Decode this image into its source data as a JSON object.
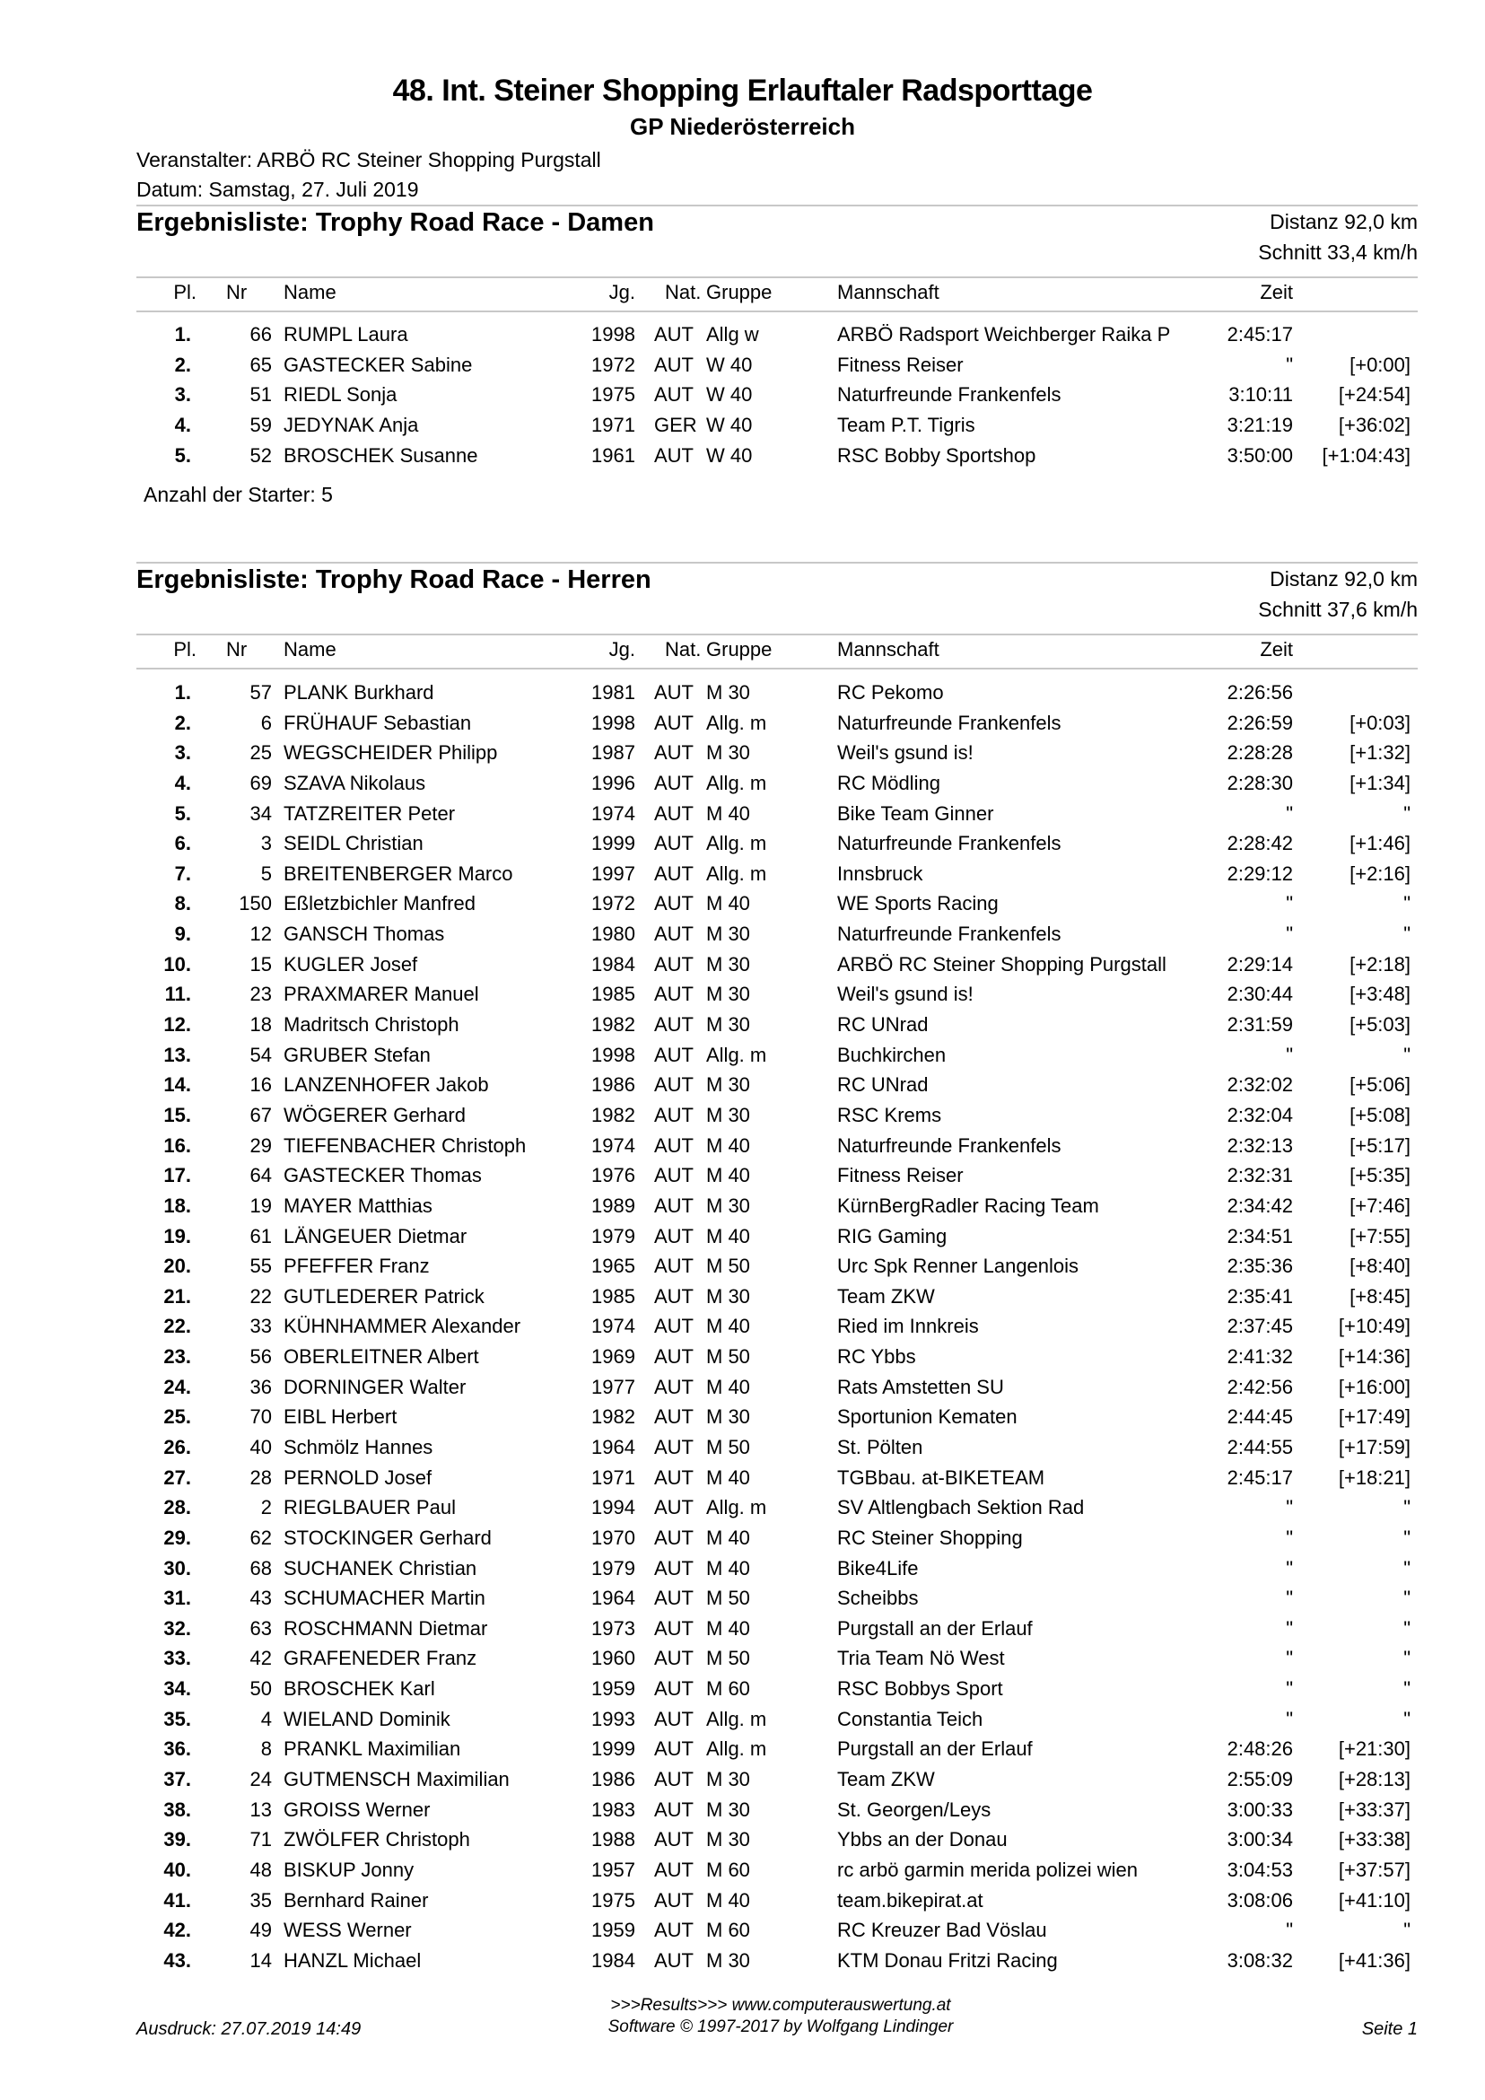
{
  "header": {
    "title": "48. Int. Steiner Shopping Erlauftaler Radsporttage",
    "subtitle": "GP Niederösterreich",
    "organizer": "Veranstalter: ARBÖ RC Steiner Shopping Purgstall",
    "date": "Datum: Samstag, 27. Juli 2019"
  },
  "columns": {
    "pl": "Pl.",
    "nr": "Nr",
    "name": "Name",
    "jg": "Jg.",
    "nat": "Nat.",
    "gruppe": "Gruppe",
    "team": "Mannschaft",
    "zeit": "Zeit"
  },
  "damen": {
    "title": "Ergebnisliste: Trophy Road Race - Damen",
    "distance": "Distanz 92,0 km",
    "average": "Schnitt 33,4 km/h",
    "count": "Anzahl der Starter: 5",
    "rows": [
      [
        "1.",
        "66",
        "RUMPL Laura",
        "1998",
        "AUT",
        "Allg w",
        "ARBÖ Radsport Weichberger Raika P",
        "2:45:17",
        ""
      ],
      [
        "2.",
        "65",
        "GASTECKER Sabine",
        "1972",
        "AUT",
        "W 40",
        "Fitness Reiser",
        "\"",
        "[+0:00]"
      ],
      [
        "3.",
        "51",
        "RIEDL Sonja",
        "1975",
        "AUT",
        "W 40",
        "Naturfreunde Frankenfels",
        "3:10:11",
        "[+24:54]"
      ],
      [
        "4.",
        "59",
        "JEDYNAK Anja",
        "1971",
        "GER",
        "W 40",
        "Team P.T. Tigris",
        "3:21:19",
        "[+36:02]"
      ],
      [
        "5.",
        "52",
        "BROSCHEK Susanne",
        "1961",
        "AUT",
        "W 40",
        "RSC Bobby Sportshop",
        "3:50:00",
        "[+1:04:43]"
      ]
    ]
  },
  "herren": {
    "title": "Ergebnisliste: Trophy Road Race - Herren",
    "distance": "Distanz 92,0 km",
    "average": "Schnitt 37,6 km/h",
    "rows": [
      [
        "1.",
        "57",
        "PLANK Burkhard",
        "1981",
        "AUT",
        "M 30",
        "RC Pekomo",
        "2:26:56",
        ""
      ],
      [
        "2.",
        "6",
        "FRÜHAUF Sebastian",
        "1998",
        "AUT",
        "Allg. m",
        "Naturfreunde Frankenfels",
        "2:26:59",
        "[+0:03]"
      ],
      [
        "3.",
        "25",
        "WEGSCHEIDER Philipp",
        "1987",
        "AUT",
        "M 30",
        "Weil's gsund is!",
        "2:28:28",
        "[+1:32]"
      ],
      [
        "4.",
        "69",
        "SZAVA Nikolaus",
        "1996",
        "AUT",
        "Allg. m",
        "RC Mödling",
        "2:28:30",
        "[+1:34]"
      ],
      [
        "5.",
        "34",
        "TATZREITER Peter",
        "1974",
        "AUT",
        "M 40",
        "Bike Team Ginner",
        "\"",
        "\""
      ],
      [
        "6.",
        "3",
        "SEIDL Christian",
        "1999",
        "AUT",
        "Allg. m",
        "Naturfreunde Frankenfels",
        "2:28:42",
        "[+1:46]"
      ],
      [
        "7.",
        "5",
        "BREITENBERGER Marco",
        "1997",
        "AUT",
        "Allg. m",
        "Innsbruck",
        "2:29:12",
        "[+2:16]"
      ],
      [
        "8.",
        "150",
        "Eßletzbichler Manfred",
        "1972",
        "AUT",
        "M 40",
        "WE Sports Racing",
        "\"",
        "\""
      ],
      [
        "9.",
        "12",
        "GANSCH Thomas",
        "1980",
        "AUT",
        "M 30",
        "Naturfreunde Frankenfels",
        "\"",
        "\""
      ],
      [
        "10.",
        "15",
        "KUGLER Josef",
        "1984",
        "AUT",
        "M 30",
        "ARBÖ RC Steiner Shopping Purgstall",
        "2:29:14",
        "[+2:18]"
      ],
      [
        "11.",
        "23",
        "PRAXMARER Manuel",
        "1985",
        "AUT",
        "M 30",
        "Weil's gsund is!",
        "2:30:44",
        "[+3:48]"
      ],
      [
        "12.",
        "18",
        "Madritsch Christoph",
        "1982",
        "AUT",
        "M 30",
        "RC UNrad",
        "2:31:59",
        "[+5:03]"
      ],
      [
        "13.",
        "54",
        "GRUBER Stefan",
        "1998",
        "AUT",
        "Allg. m",
        "Buchkirchen",
        "\"",
        "\""
      ],
      [
        "14.",
        "16",
        "LANZENHOFER Jakob",
        "1986",
        "AUT",
        "M 30",
        "RC UNrad",
        "2:32:02",
        "[+5:06]"
      ],
      [
        "15.",
        "67",
        "WÖGERER Gerhard",
        "1982",
        "AUT",
        "M 30",
        "RSC Krems",
        "2:32:04",
        "[+5:08]"
      ],
      [
        "16.",
        "29",
        "TIEFENBACHER Christoph",
        "1974",
        "AUT",
        "M 40",
        "Naturfreunde Frankenfels",
        "2:32:13",
        "[+5:17]"
      ],
      [
        "17.",
        "64",
        "GASTECKER Thomas",
        "1976",
        "AUT",
        "M 40",
        "Fitness Reiser",
        "2:32:31",
        "[+5:35]"
      ],
      [
        "18.",
        "19",
        "MAYER Matthias",
        "1989",
        "AUT",
        "M 30",
        "KürnBergRadler Racing Team",
        "2:34:42",
        "[+7:46]"
      ],
      [
        "19.",
        "61",
        "LÄNGEUER Dietmar",
        "1979",
        "AUT",
        "M 40",
        "RIG Gaming",
        "2:34:51",
        "[+7:55]"
      ],
      [
        "20.",
        "55",
        "PFEFFER Franz",
        "1965",
        "AUT",
        "M 50",
        "Urc Spk Renner Langenlois",
        "2:35:36",
        "[+8:40]"
      ],
      [
        "21.",
        "22",
        "GUTLEDERER Patrick",
        "1985",
        "AUT",
        "M 30",
        "Team ZKW",
        "2:35:41",
        "[+8:45]"
      ],
      [
        "22.",
        "33",
        "KÜHNHAMMER Alexander",
        "1974",
        "AUT",
        "M 40",
        "Ried im Innkreis",
        "2:37:45",
        "[+10:49]"
      ],
      [
        "23.",
        "56",
        "OBERLEITNER Albert",
        "1969",
        "AUT",
        "M 50",
        "RC Ybbs",
        "2:41:32",
        "[+14:36]"
      ],
      [
        "24.",
        "36",
        "DORNINGER Walter",
        "1977",
        "AUT",
        "M 40",
        "Rats Amstetten SU",
        "2:42:56",
        "[+16:00]"
      ],
      [
        "25.",
        "70",
        "EIBL Herbert",
        "1982",
        "AUT",
        "M 30",
        "Sportunion Kematen",
        "2:44:45",
        "[+17:49]"
      ],
      [
        "26.",
        "40",
        "Schmölz Hannes",
        "1964",
        "AUT",
        "M 50",
        "St.  Pölten",
        "2:44:55",
        "[+17:59]"
      ],
      [
        "27.",
        "28",
        "PERNOLD Josef",
        "1971",
        "AUT",
        "M 40",
        "TGBbau. at-BIKETEAM",
        "2:45:17",
        "[+18:21]"
      ],
      [
        "28.",
        "2",
        "RIEGLBAUER Paul",
        "1994",
        "AUT",
        "Allg. m",
        "SV Altlengbach Sektion Rad",
        "\"",
        "\""
      ],
      [
        "29.",
        "62",
        "STOCKINGER Gerhard",
        "1970",
        "AUT",
        "M 40",
        "RC Steiner Shopping",
        "\"",
        "\""
      ],
      [
        "30.",
        "68",
        "SUCHANEK Christian",
        "1979",
        "AUT",
        "M 40",
        "Bike4Life",
        "\"",
        "\""
      ],
      [
        "31.",
        "43",
        "SCHUMACHER Martin",
        "1964",
        "AUT",
        "M 50",
        "Scheibbs",
        "\"",
        "\""
      ],
      [
        "32.",
        "63",
        "ROSCHMANN Dietmar",
        "1973",
        "AUT",
        "M 40",
        "Purgstall an der Erlauf",
        "\"",
        "\""
      ],
      [
        "33.",
        "42",
        "GRAFENEDER Franz",
        "1960",
        "AUT",
        "M 50",
        "Tria Team Nö West",
        "\"",
        "\""
      ],
      [
        "34.",
        "50",
        "BROSCHEK Karl",
        "1959",
        "AUT",
        "M 60",
        "RSC Bobbys Sport",
        "\"",
        "\""
      ],
      [
        "35.",
        "4",
        "WIELAND Dominik",
        "1993",
        "AUT",
        "Allg. m",
        "Constantia Teich",
        "\"",
        "\""
      ],
      [
        "36.",
        "8",
        "PRANKL Maximilian",
        "1999",
        "AUT",
        "Allg. m",
        "Purgstall an der Erlauf",
        "2:48:26",
        "[+21:30]"
      ],
      [
        "37.",
        "24",
        "GUTMENSCH Maximilian",
        "1986",
        "AUT",
        "M 30",
        "Team ZKW",
        "2:55:09",
        "[+28:13]"
      ],
      [
        "38.",
        "13",
        "GROISS Werner",
        "1983",
        "AUT",
        "M 30",
        "St. Georgen/Leys",
        "3:00:33",
        "[+33:37]"
      ],
      [
        "39.",
        "71",
        "ZWÖLFER Christoph",
        "1988",
        "AUT",
        "M 30",
        "Ybbs an der Donau",
        "3:00:34",
        "[+33:38]"
      ],
      [
        "40.",
        "48",
        "BISKUP Jonny",
        "1957",
        "AUT",
        "M 60",
        "rc arbö garmin merida polizei wien",
        "3:04:53",
        "[+37:57]"
      ],
      [
        "41.",
        "35",
        "Bernhard Rainer",
        "1975",
        "AUT",
        "M 40",
        "team.bikepirat.at",
        "3:08:06",
        "[+41:10]"
      ],
      [
        "42.",
        "49",
        "WESS Werner",
        "1959",
        "AUT",
        "M 60",
        "RC Kreuzer Bad Vöslau",
        "\"",
        "\""
      ],
      [
        "43.",
        "14",
        "HANZL Michael",
        "1984",
        "AUT",
        "M 30",
        "KTM Donau Fritzi Racing",
        "3:08:32",
        "[+41:36]"
      ]
    ]
  },
  "footer": {
    "printed": "Ausdruck: 27.07.2019 14:49",
    "results_link": ">>>Results>>> www.computerauswertung.at",
    "software": "Software © 1997-2017 by Wolfgang Lindinger",
    "page": "Seite 1"
  }
}
